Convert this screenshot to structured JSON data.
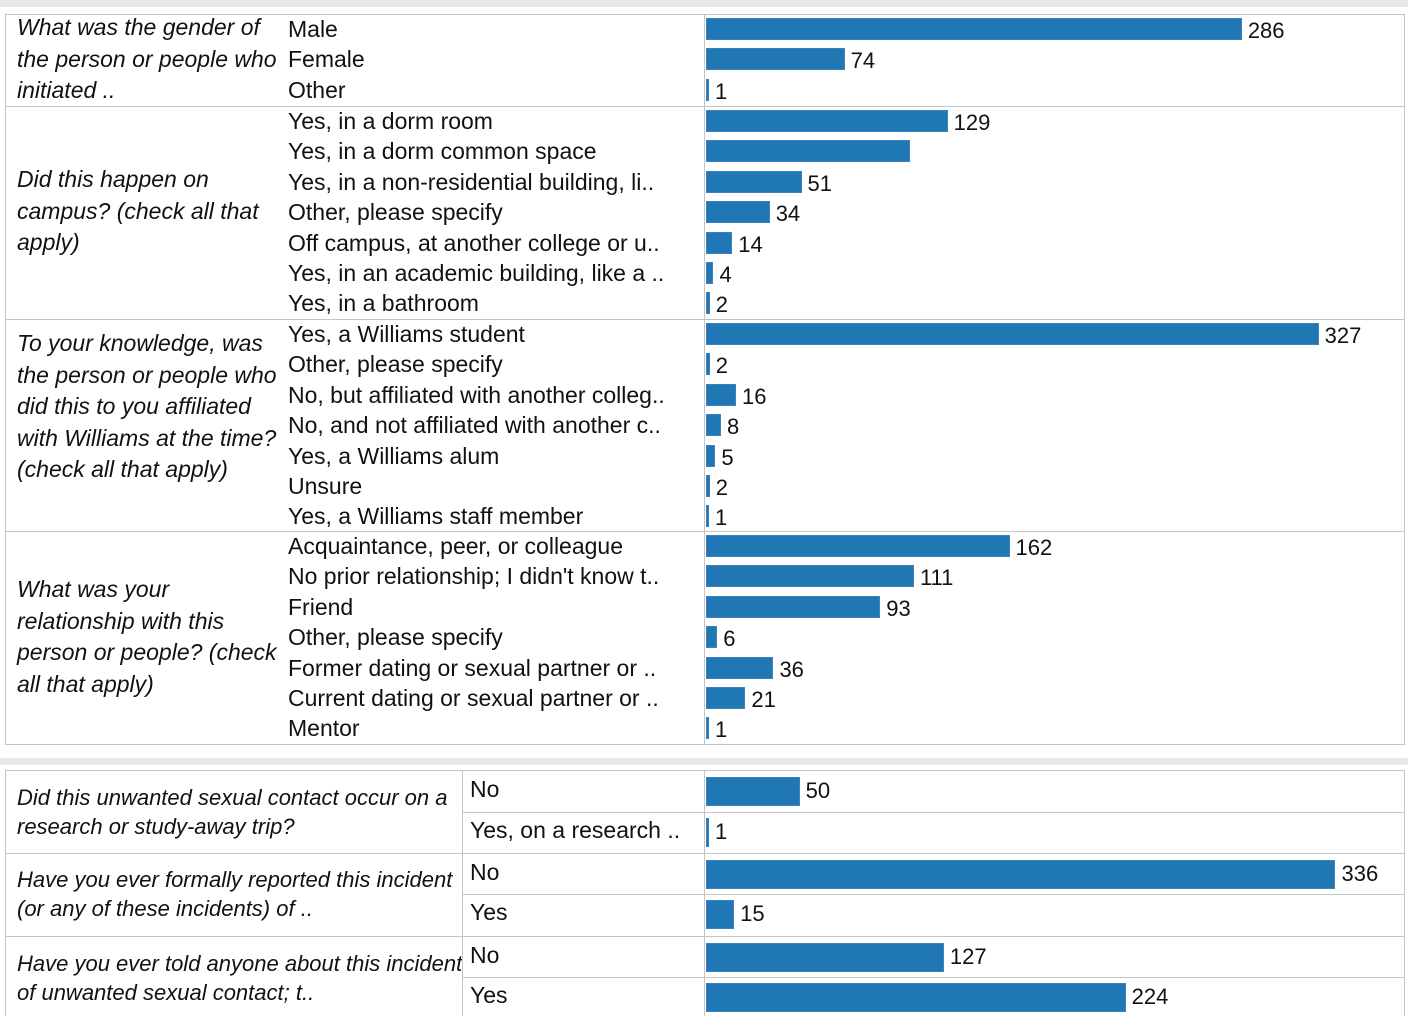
{
  "colors": {
    "bar": "#1f77b4",
    "grid": "#c4c4c4",
    "strip": "#e8e8ec"
  },
  "chart_data": [
    {
      "type": "bar",
      "orientation": "horizontal",
      "groups": [
        {
          "question": "What was the gender of the person or people who initiated ..",
          "categories": [
            "Male",
            "Female",
            "Other"
          ],
          "values": [
            286,
            74,
            1
          ],
          "labels": [
            "286",
            "74",
            "1"
          ]
        },
        {
          "question": "Did this happen on campus? (check all that apply)",
          "categories": [
            "Yes, in a dorm room",
            "Yes, in a dorm common space",
            "Yes, in a non-residential building, li..",
            "Other, please specify",
            "Off campus, at another college or u..",
            "Yes, in an academic building, like a ..",
            "Yes, in a bathroom"
          ],
          "values": [
            129,
            109,
            51,
            34,
            14,
            4,
            2
          ],
          "labels": [
            "129",
            "",
            "51",
            "34",
            "14",
            "4",
            "2"
          ]
        },
        {
          "question": "To your knowledge, was the person or people who did this to you affiliated with Williams at the time? (check all that apply)",
          "categories": [
            "Yes, a Williams student",
            "Other, please specify",
            "No, but affiliated with another colleg..",
            "No, and not affiliated with another c..",
            "Yes, a Williams alum",
            "Unsure",
            "Yes, a Williams staff member"
          ],
          "values": [
            327,
            2,
            16,
            8,
            5,
            2,
            1
          ],
          "labels": [
            "327",
            "2",
            "16",
            "8",
            "5",
            "2",
            "1"
          ]
        },
        {
          "question": "What was your relationship with this person or people? (check all that apply)",
          "categories": [
            "Acquaintance, peer, or colleague",
            "No prior relationship; I didn't know t..",
            "Friend",
            "Other, please specify",
            "Former dating or sexual partner or ..",
            "Current dating or sexual partner or ..",
            "Mentor"
          ],
          "values": [
            162,
            111,
            93,
            6,
            36,
            21,
            1
          ],
          "labels": [
            "162",
            "111",
            "93",
            "6",
            "36",
            "21",
            "1"
          ]
        }
      ]
    },
    {
      "type": "bar",
      "orientation": "horizontal",
      "groups": [
        {
          "question": "Did this unwanted sexual contact occur on a research or study-away trip?",
          "categories": [
            "No",
            "Yes, on a research .."
          ],
          "values": [
            50,
            1
          ],
          "labels": [
            "50",
            "1"
          ]
        },
        {
          "question": "Have you ever formally reported this incident (or any of these incidents) of ..",
          "categories": [
            "No",
            "Yes"
          ],
          "values": [
            336,
            15
          ],
          "labels": [
            "336",
            "15"
          ]
        },
        {
          "question": "Have you ever told anyone about this incident of unwanted sexual contact; t..",
          "categories": [
            "No",
            "Yes"
          ],
          "values": [
            127,
            224
          ],
          "labels": [
            "127",
            "224"
          ]
        }
      ]
    }
  ]
}
